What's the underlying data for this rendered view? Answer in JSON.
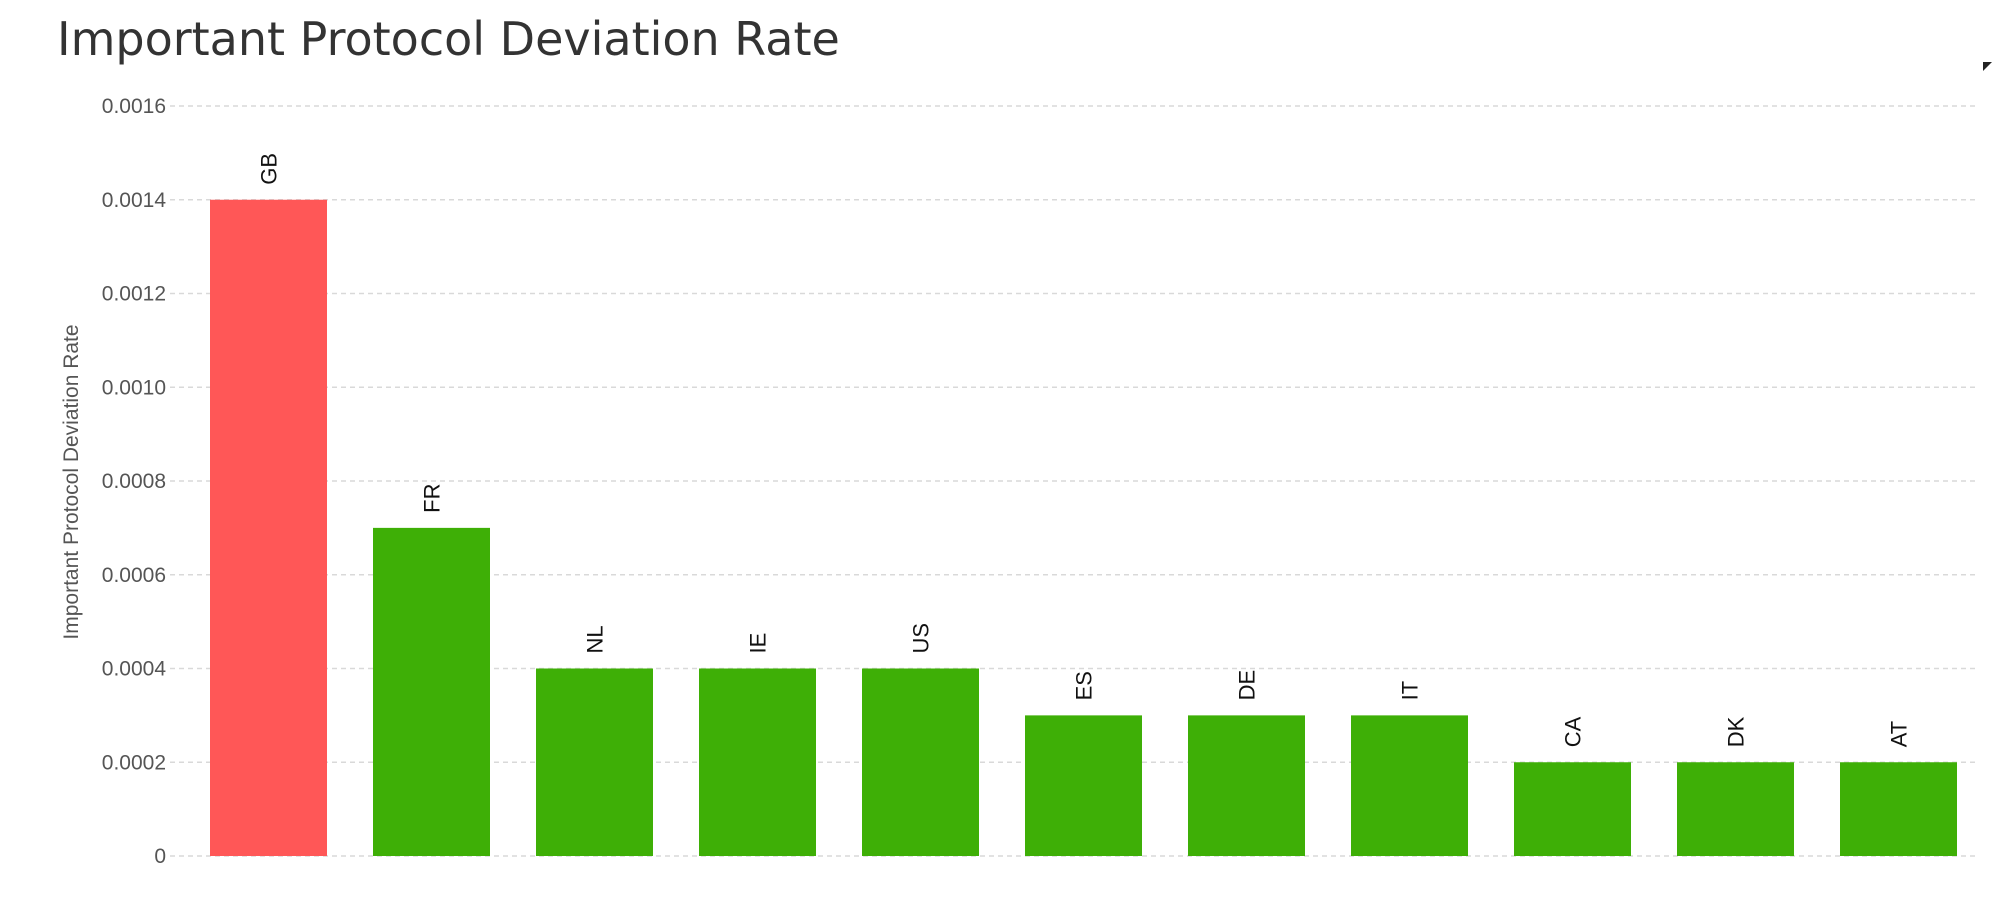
{
  "chart_data": {
    "type": "bar",
    "title": "Important Protocol Deviation Rate",
    "ylabel": "Important Protocol Deviation Rate",
    "xlabel": "",
    "categories": [
      "GB",
      "FR",
      "NL",
      "IE",
      "US",
      "ES",
      "DE",
      "IT",
      "CA",
      "DK",
      "AT"
    ],
    "values": [
      0.0014,
      0.0007,
      0.0004,
      0.0004,
      0.0004,
      0.0003,
      0.0003,
      0.0003,
      0.0002,
      0.0002,
      0.0002
    ],
    "ylim": [
      0,
      0.0016
    ],
    "y_ticks": [
      "0",
      "0.0002",
      "0.0004",
      "0.0006",
      "0.0008",
      "0.0010",
      "0.0012",
      "0.0014",
      "0.0016"
    ],
    "grid": true,
    "legend": "none",
    "colors": {
      "highlight": "#ff5757",
      "default": "#3eaf06"
    },
    "highlight_categories": [
      "GB"
    ]
  },
  "ui": {
    "cursor_icon": "mouse-pointer-icon"
  }
}
